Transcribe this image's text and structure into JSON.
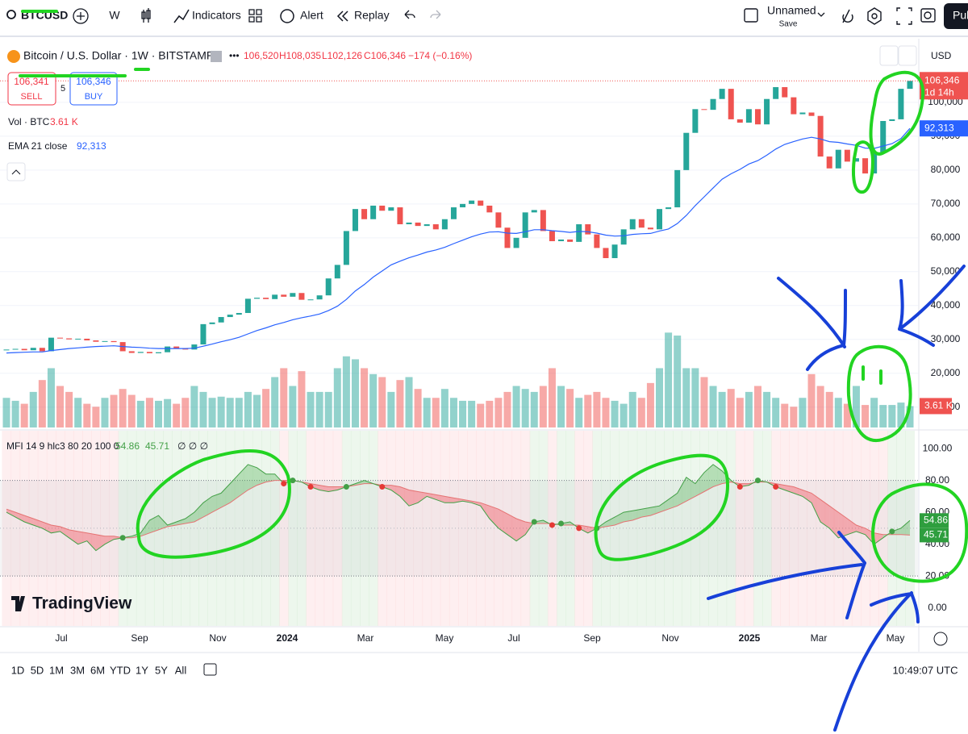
{
  "toolbar": {
    "symbol": "BTCUSD",
    "interval": "W",
    "indicators": "Indicators",
    "alert": "Alert",
    "replay": "Replay",
    "layout_name": "Unnamed",
    "save": "Save",
    "publish": "Pub"
  },
  "legend": {
    "title": "Bitcoin / U.S. Dollar · 1W · BITSTAMP",
    "open": "106,520",
    "high": "H108,035",
    "low": "L102,126",
    "close": "C106,346",
    "change": "−174 (−0.16%)"
  },
  "trade": {
    "sell_price": "106,341",
    "sell": "SELL",
    "spread": "5",
    "buy_price": "106,346",
    "buy": "BUY"
  },
  "volume_legend": {
    "label": "Vol · BTC",
    "value": "3.61 K"
  },
  "ema_legend": {
    "label": "EMA 21 close",
    "value": "92,313"
  },
  "currency": "USD",
  "chart_data": [
    {
      "type": "candlestick",
      "close": [
        27000,
        27200,
        26800,
        27500,
        26500,
        30500,
        30300,
        30000,
        30200,
        29700,
        29300,
        29500,
        29200,
        26500,
        26000,
        26300,
        25900,
        26200,
        27900,
        27300,
        27000,
        28500,
        34500,
        35000,
        36600,
        37300,
        37800,
        42000,
        42300,
        41900,
        43200,
        42600,
        43700,
        41700,
        41800,
        43000,
        48000,
        52000,
        62000,
        68500,
        65500,
        69500,
        68000,
        69000,
        64000,
        64500,
        63500,
        64000,
        62500,
        65500,
        69000,
        70000,
        71000,
        69500,
        67500,
        63000,
        57000,
        60000,
        67500,
        68200,
        62000,
        59000,
        59500,
        58800,
        64000,
        61000,
        57000,
        54000,
        58000,
        62500,
        65500,
        63000,
        62500,
        68500,
        69000,
        80000,
        91000,
        98000,
        97800,
        101000,
        104000,
        95000,
        94000,
        98000,
        93500,
        101000,
        104500,
        101500,
        96500,
        97000,
        96000,
        84000,
        80500,
        86000,
        82500,
        83500,
        79000,
        85000,
        94500,
        95000,
        104000,
        106346
      ],
      "volume": [
        5,
        4.5,
        4,
        6,
        8,
        10,
        7,
        6,
        5,
        4,
        3.5,
        5,
        5.5,
        6.5,
        5.5,
        4.5,
        5,
        4.5,
        4.8,
        4,
        5,
        7,
        6,
        5,
        5.2,
        5,
        5,
        6,
        5.5,
        6.5,
        8.5,
        10,
        7,
        9.5,
        6,
        6,
        6,
        10,
        12,
        11.5,
        10,
        9,
        8.5,
        6,
        8,
        8.5,
        6.5,
        5,
        5,
        6.5,
        5,
        4.5,
        4.5,
        4,
        4.5,
        5,
        6,
        7,
        6.5,
        6,
        7,
        10,
        7,
        6.5,
        5,
        5.5,
        6,
        5,
        4.5,
        4,
        6,
        5,
        7.5,
        10,
        16,
        15.5,
        10,
        10,
        8.5,
        7,
        6,
        6.5,
        5,
        6,
        7,
        6,
        5,
        4,
        3.5,
        5,
        9,
        7,
        6,
        5,
        4,
        7,
        3.8,
        5,
        3.8,
        3.8,
        4.2,
        3.61
      ],
      "ema": [
        26000,
        26100,
        26200,
        26300,
        26300,
        26700,
        27000,
        27300,
        27500,
        27700,
        27900,
        28000,
        28100,
        27900,
        27700,
        27600,
        27400,
        27300,
        27300,
        27300,
        27300,
        27400,
        28000,
        28600,
        29300,
        29900,
        30600,
        31600,
        32600,
        33400,
        34300,
        35000,
        35800,
        36400,
        36900,
        37500,
        38500,
        39800,
        41800,
        44300,
        46200,
        48400,
        50200,
        52000,
        53100,
        54100,
        54900,
        55800,
        56400,
        57200,
        58300,
        59300,
        60300,
        61100,
        61700,
        61800,
        61400,
        61300,
        61800,
        62400,
        62400,
        62100,
        61900,
        61600,
        61900,
        61800,
        61400,
        60800,
        60500,
        60600,
        61000,
        61200,
        61300,
        62000,
        62600,
        64200,
        66600,
        69500,
        72100,
        74700,
        77300,
        78900,
        80200,
        81800,
        82800,
        84400,
        86200,
        87600,
        88400,
        89200,
        89700,
        89200,
        88400,
        88200,
        87700,
        87300,
        86500,
        86400,
        87100,
        87800,
        89300,
        92313
      ],
      "ylim": [
        3500,
        118800
      ],
      "volume_ylim": [
        0,
        17
      ],
      "yticks": [
        {
          "value": 10000,
          "label": "10,000"
        },
        {
          "value": 20000,
          "label": "20,000"
        },
        {
          "value": 30000,
          "label": "30,000"
        },
        {
          "value": 40000,
          "label": "40,000"
        },
        {
          "value": 50000,
          "label": "50,000"
        },
        {
          "value": 60000,
          "label": "60,000"
        },
        {
          "value": 70000,
          "label": "70,000"
        },
        {
          "value": 80000,
          "label": "80,000"
        },
        {
          "value": 90000,
          "label": "90,000"
        },
        {
          "value": 100000,
          "label": "100,000"
        }
      ],
      "up_color": "#26a69a",
      "down_color": "#ef5350",
      "ema_color": "#2962ff",
      "last_price": {
        "value": 106346,
        "label": "106,346"
      },
      "countdown": "1d 14h",
      "ema_last": {
        "value": 92313,
        "label": "92,313"
      },
      "volume_last": {
        "value": 3.61,
        "label": "3.61 K"
      }
    },
    {
      "type": "mfi",
      "title": "MFI 14 9 hlc3 80 20 100 0",
      "mfi": [
        60,
        57,
        54,
        52,
        50,
        47,
        48,
        44,
        40,
        42,
        36,
        40,
        43,
        44,
        45,
        47,
        55,
        58,
        52,
        54,
        56,
        60,
        66,
        70,
        72,
        78,
        84,
        90,
        88,
        84,
        84,
        78,
        80,
        79,
        76,
        74,
        73,
        74,
        76,
        78,
        80,
        78,
        76,
        74,
        70,
        64,
        66,
        70,
        68,
        66,
        66,
        67,
        66,
        64,
        56,
        50,
        46,
        42,
        46,
        54,
        55,
        52,
        53,
        54,
        50,
        47,
        50,
        54,
        57,
        60,
        61,
        62,
        63,
        64,
        68,
        72,
        82,
        78,
        85,
        90,
        86,
        80,
        76,
        77,
        80,
        79,
        76,
        74,
        72,
        70,
        66,
        54,
        50,
        44,
        46,
        48,
        46,
        40,
        44,
        48,
        50,
        54.86
      ],
      "signal": [
        62,
        60,
        58,
        56,
        54,
        52,
        51,
        49,
        48,
        47,
        46,
        45,
        45,
        44,
        44,
        45,
        47,
        49,
        51,
        52,
        53,
        54,
        57,
        60,
        63,
        66,
        70,
        74,
        77,
        79,
        80,
        80,
        80,
        79,
        78,
        77,
        76,
        76,
        76,
        77,
        78,
        78,
        77,
        77,
        76,
        74,
        73,
        72,
        71,
        70,
        69,
        68,
        67,
        66,
        64,
        62,
        59,
        56,
        54,
        53,
        53,
        53,
        52,
        52,
        52,
        51,
        50,
        51,
        52,
        54,
        55,
        57,
        58,
        60,
        62,
        64,
        67,
        70,
        73,
        76,
        78,
        79,
        78,
        78,
        79,
        79,
        78,
        77,
        76,
        74,
        72,
        68,
        64,
        60,
        56,
        52,
        50,
        47,
        46,
        46,
        46,
        45.71
      ],
      "mfi_label": "54.86",
      "signal_label": "45.71",
      "empty_marks": "∅ ∅ ∅",
      "levels": [
        80,
        20
      ],
      "ylim": [
        -11.3,
        111.2
      ],
      "yticks": [
        {
          "value": 0,
          "label": "0.00"
        },
        {
          "value": 20,
          "label": "20.00"
        },
        {
          "value": 40,
          "label": "40.00"
        },
        {
          "value": 60,
          "label": "60.00"
        },
        {
          "value": 80,
          "label": "80.00"
        },
        {
          "value": 100,
          "label": "100.00"
        }
      ],
      "mfi_color": "#43a047",
      "signal_color": "#e57373"
    }
  ],
  "time_labels": [
    "Jul",
    "Sep",
    "Nov",
    "2024",
    "Mar",
    "May",
    "Jul",
    "Sep",
    "Nov",
    "2025",
    "Mar",
    "May"
  ],
  "branding": "TradingView",
  "bottom_bar": {
    "ranges": [
      "1D",
      "5D",
      "1M",
      "3M",
      "6M",
      "YTD",
      "1Y",
      "5Y",
      "All"
    ],
    "clock": "10:49:07 UTC"
  }
}
